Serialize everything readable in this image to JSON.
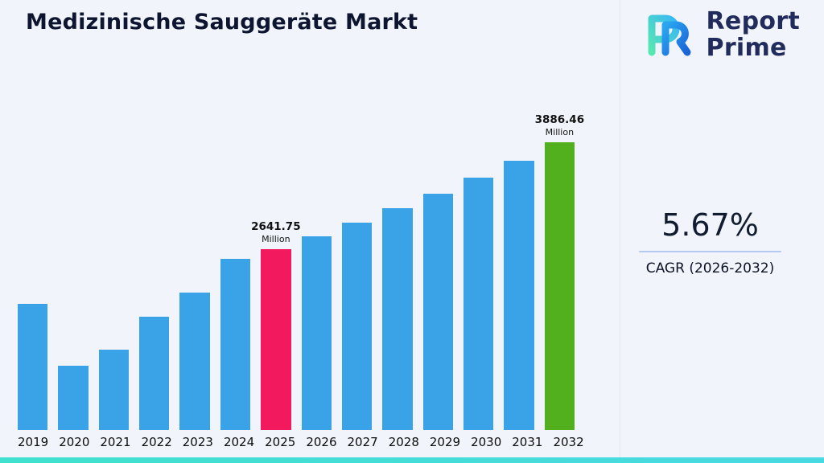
{
  "page": {
    "title": "Medizinische Sauggeräte Markt",
    "brand": {
      "line1": "Report",
      "line2": "Prime"
    },
    "stat": {
      "value": "5.67%",
      "label": "CAGR (2026-2032)"
    }
  },
  "chart_data": {
    "type": "bar",
    "title": "Medizinische Sauggeräte Markt",
    "unit": "Million",
    "categories": [
      "2019",
      "2020",
      "2021",
      "2022",
      "2023",
      "2024",
      "2025",
      "2026",
      "2027",
      "2028",
      "2029",
      "2030",
      "2031",
      "2032"
    ],
    "values": [
      2005,
      1285,
      1472,
      1856,
      2137,
      2530,
      2641.75,
      2791.5,
      2949.8,
      3117.0,
      3293.7,
      3480.5,
      3677.8,
      3886.46
    ],
    "ylim": [
      530,
      3890
    ],
    "xlabel": "",
    "ylabel": "",
    "grid": false,
    "legend": false,
    "bar_color": "#3aa3e8",
    "highlights": [
      {
        "category": "2025",
        "value_label": "2641.75",
        "unit": "Million",
        "color": "#f3195e"
      },
      {
        "category": "2032",
        "value_label": "3886.46",
        "unit": "Million",
        "color": "#52b01e"
      }
    ]
  }
}
